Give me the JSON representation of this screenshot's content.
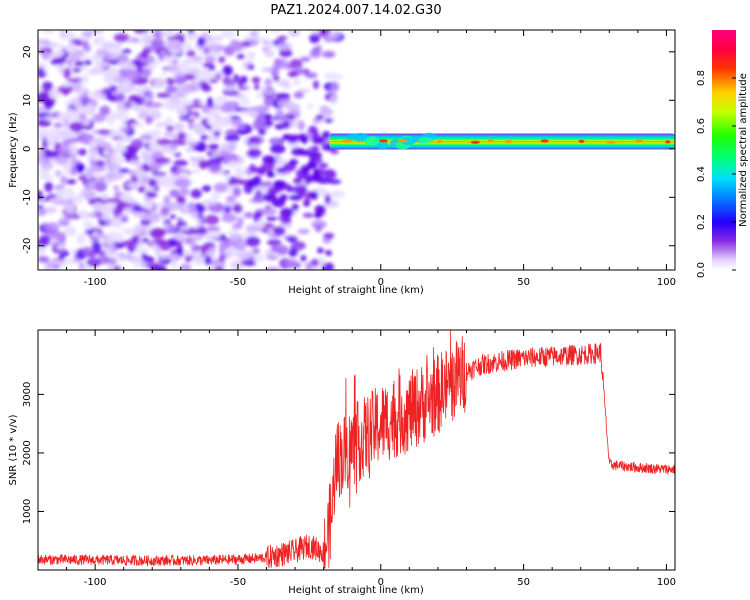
{
  "title": "PAZ1.2024.007.14.02.G30",
  "colors": {
    "snr_line": "#ee2222",
    "axes": "#000000",
    "background": "#ffffff"
  },
  "chart_data": [
    {
      "type": "heatmap",
      "xlabel": "Height of straight line (km)",
      "ylabel": "Frequency (Hz)",
      "xlim": [
        -120,
        103
      ],
      "ylim": [
        -25,
        24.5
      ],
      "xticks": [
        -100,
        -50,
        0,
        50,
        100
      ],
      "yticks": [
        -20,
        -10,
        0,
        10,
        20
      ],
      "colorbar": {
        "label": "Normalized spectral amplitude",
        "range": [
          0,
          1
        ],
        "ticks": [
          "0.0",
          "0.2",
          "0.4",
          "0.6",
          "0.8"
        ],
        "colormap": "gist_rainbow (white at low end)"
      },
      "description": "Noisy purple speckle for heights below about -20 km; a narrow strong band near +1.5 Hz from about -18 km to 103 km",
      "band": {
        "x_start": -18,
        "x_end": 103,
        "center_freq": 1.5,
        "peak_amplitude": 0.9
      },
      "noise_region": {
        "x_start": -120,
        "x_end": -15,
        "amplitude_range": [
          0.05,
          0.35
        ]
      }
    },
    {
      "type": "line",
      "xlabel": "Height of straight line (km)",
      "ylabel": "SNR (10 * v/v)",
      "xlim": [
        -120,
        103
      ],
      "ylim": [
        0,
        4100
      ],
      "xticks": [
        -100,
        -50,
        0,
        50,
        100
      ],
      "yticks": [
        1000,
        2000,
        3000
      ],
      "series": [
        {
          "color": "#ee2222",
          "x": [
            -120,
            -100,
            -80,
            -60,
            -50,
            -40,
            -30,
            -25,
            -20,
            -17,
            -16,
            -15,
            -10,
            -5,
            0,
            5,
            10,
            15,
            20,
            25,
            30,
            35,
            40,
            50,
            60,
            70,
            75,
            77,
            78,
            80,
            90,
            100,
            103
          ],
          "y": [
            180,
            170,
            160,
            165,
            180,
            210,
            320,
            420,
            300,
            1000,
            1800,
            1900,
            2100,
            2300,
            2500,
            2600,
            2700,
            2850,
            3000,
            3200,
            3400,
            3500,
            3550,
            3620,
            3650,
            3680,
            3700,
            3720,
            3100,
            1800,
            1750,
            1720,
            1720
          ]
        }
      ]
    }
  ]
}
